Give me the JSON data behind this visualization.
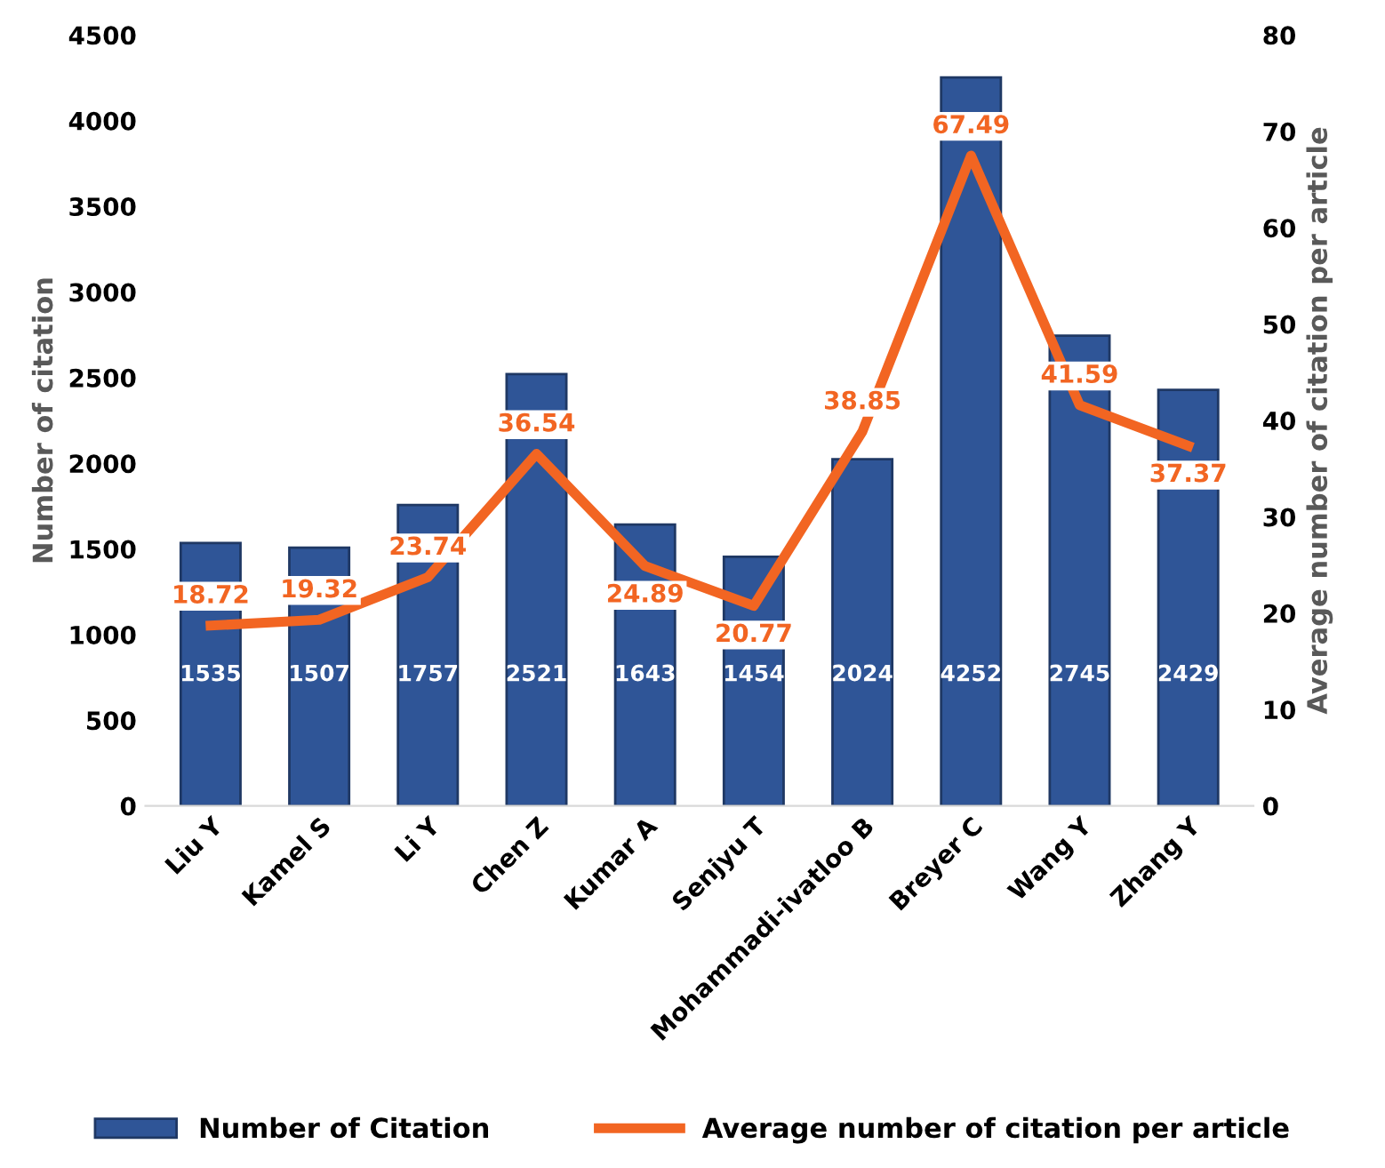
{
  "chart_data": {
    "type": "bar",
    "categories": [
      "Liu Y",
      "Kamel S",
      "Li Y",
      "Chen Z",
      "Kumar A",
      "Senjyu T",
      "Mohammadi-ivatloo B",
      "Breyer C",
      "Wang Y",
      "Zhang Y"
    ],
    "series": [
      {
        "name": "Number of Citation",
        "color": "#2f5597",
        "values": [
          1535,
          1507,
          1757,
          2521,
          1643,
          1454,
          2024,
          4252,
          2745,
          2429
        ]
      },
      {
        "name": "Average number of citation per article",
        "type": "line",
        "axis": "y2",
        "color": "#f26522",
        "values": [
          18.72,
          19.32,
          23.74,
          36.54,
          24.89,
          20.77,
          38.85,
          67.49,
          41.59,
          37.37
        ]
      }
    ],
    "ylabel": "Number of citation",
    "y2label": "Average number of citation per article",
    "ylim": [
      0,
      4500
    ],
    "yticks": [
      0,
      500,
      1000,
      1500,
      2000,
      2500,
      3000,
      3500,
      4000,
      4500
    ],
    "y2lim": [
      0,
      80
    ],
    "y2ticks": [
      0,
      10,
      20,
      30,
      40,
      50,
      60,
      70,
      80
    ],
    "data_labels": true,
    "legend": "bottom",
    "grid": false,
    "marker": "none",
    "line_style": "solid"
  }
}
